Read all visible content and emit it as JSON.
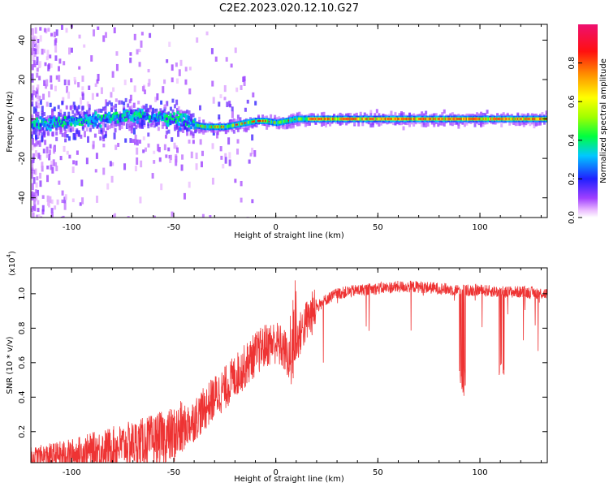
{
  "title": "C2E2.2023.020.12.10.G27",
  "chart_data": [
    {
      "type": "heatmap",
      "xlabel": "Height of straight line (km)",
      "ylabel": "Frequency (Hz)",
      "xlim": [
        -120,
        133
      ],
      "ylim": [
        -50,
        48
      ],
      "xticks": [
        -100,
        -50,
        0,
        50,
        100
      ],
      "yticks": [
        -40,
        -20,
        0,
        20,
        40
      ],
      "colorbar": {
        "label": "Normalized spectral amplitude",
        "range": [
          0.0,
          1.0
        ],
        "ticks": [
          0.0,
          0.2,
          0.4,
          0.6,
          0.8
        ]
      },
      "ridge": {
        "x": [
          -120,
          -110,
          -100,
          -90,
          -80,
          -70,
          -60,
          -50,
          -45,
          -40,
          -35,
          -30,
          -25,
          -20,
          -15,
          -10,
          -5,
          0,
          5,
          10,
          15,
          20,
          40,
          60,
          80,
          100,
          120,
          133
        ],
        "y": [
          -3,
          -2,
          -1,
          0,
          1,
          2,
          1,
          0,
          -1,
          -3,
          -4,
          -4,
          -4,
          -3,
          -2,
          -1,
          -1,
          -2,
          -1,
          0,
          0,
          0,
          0,
          0,
          0,
          0,
          0,
          0
        ]
      }
    },
    {
      "type": "line",
      "xlabel": "Height of straight line (km)",
      "ylabel": "SNR (10 * v/v)",
      "yscale_label": "(x10",
      "yscale_exp": "4",
      "xlim": [
        -120,
        133
      ],
      "ylim": [
        0.02,
        1.15
      ],
      "xticks": [
        -100,
        -50,
        0,
        50,
        100
      ],
      "yticks": [
        0.2,
        0.4,
        0.6,
        0.8,
        1.0
      ],
      "color": "#ee3333",
      "series": [
        {
          "x": [
            -120,
            -110,
            -100,
            -90,
            -80,
            -70,
            -60,
            -50,
            -45,
            -40,
            -35,
            -30,
            -25,
            -20,
            -15,
            -10,
            -5,
            0,
            5,
            8,
            10,
            15,
            20,
            25,
            30,
            40,
            50,
            60,
            70,
            80,
            90,
            100,
            110,
            120,
            133
          ],
          "values": [
            0.05,
            0.06,
            0.07,
            0.09,
            0.11,
            0.13,
            0.15,
            0.18,
            0.22,
            0.27,
            0.33,
            0.4,
            0.45,
            0.52,
            0.58,
            0.65,
            0.7,
            0.72,
            0.66,
            0.55,
            0.72,
            0.84,
            0.92,
            0.97,
            1.0,
            1.02,
            1.03,
            1.04,
            1.04,
            1.03,
            1.02,
            1.02,
            1.01,
            1.01,
            1.0
          ]
        }
      ]
    }
  ]
}
